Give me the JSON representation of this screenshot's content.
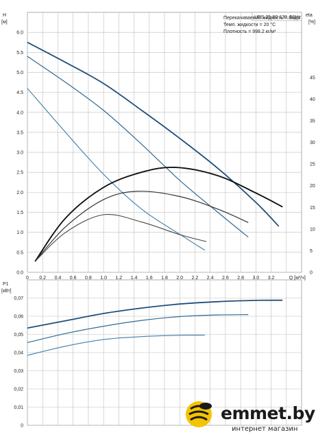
{
  "chart_data": [
    {
      "type": "line",
      "title": "UPS 25-60 130, 50Hz",
      "info_lines": [
        "Перекачиваемая жидкость = Вода",
        "Темп. жидкости = 20 °C",
        "Плотность = 998.2 кг/м³"
      ],
      "ylabel": "H",
      "yunit": "[м]",
      "y2label": "eta",
      "y2unit": "[%]",
      "xlabel": "Q [м³/ч]",
      "xlim": [
        0,
        3.6
      ],
      "ylim": [
        0,
        6.5
      ],
      "y2lim": [
        0,
        60
      ],
      "x_ticks": [
        "0",
        "0.2",
        "0.4",
        "0.6",
        "0.8",
        "1.0",
        "1.2",
        "1.4",
        "1.6",
        "1.8",
        "2.0",
        "2.2",
        "2.4",
        "2.6",
        "2.8",
        "3.0",
        "3.2",
        "Q [м³/ч]"
      ],
      "y_ticks": [
        "0.0",
        "0.5",
        "1.0",
        "1.5",
        "2.0",
        "2.5",
        "3.0",
        "3.5",
        "4.0",
        "4.5",
        "5.0",
        "5.5",
        "6.0"
      ],
      "y2_ticks": [
        "0",
        "5",
        "10",
        "15",
        "20",
        "25",
        "30",
        "35",
        "40",
        "45"
      ],
      "grid": true,
      "series": [
        {
          "kind": "head",
          "color": "#1f4e79",
          "width": 1.8,
          "x": [
            0,
            0.5,
            1.0,
            1.5,
            2.0,
            2.5,
            3.0,
            3.3
          ],
          "y": [
            5.75,
            5.25,
            4.72,
            4.05,
            3.35,
            2.6,
            1.75,
            1.15
          ]
        },
        {
          "kind": "head",
          "color": "#2f6a91",
          "width": 1.2,
          "x": [
            0,
            0.5,
            1.0,
            1.5,
            2.0,
            2.5,
            2.9
          ],
          "y": [
            5.4,
            4.75,
            4.05,
            3.2,
            2.3,
            1.5,
            0.88
          ]
        },
        {
          "kind": "head",
          "color": "#3f7ca6",
          "width": 1.1,
          "x": [
            0,
            0.5,
            1.0,
            1.5,
            2.0,
            2.33
          ],
          "y": [
            4.6,
            3.5,
            2.45,
            1.58,
            0.95,
            0.55
          ]
        },
        {
          "kind": "eta",
          "color": "#111111",
          "width": 1.9,
          "x": [
            0.1,
            0.5,
            1.0,
            1.5,
            1.95,
            2.5,
            3.0,
            3.35
          ],
          "y": [
            2.5,
            12.5,
            19.6,
            23.1,
            24.2,
            22.3,
            18.3,
            15.1
          ]
        },
        {
          "kind": "eta",
          "color": "#333333",
          "width": 1.2,
          "x": [
            0.1,
            0.5,
            1.0,
            1.45,
            2.0,
            2.5,
            2.9
          ],
          "y": [
            2.5,
            10.5,
            16.8,
            18.7,
            17.5,
            14.6,
            11.5
          ]
        },
        {
          "kind": "eta",
          "color": "#444444",
          "width": 1.1,
          "x": [
            0.1,
            0.5,
            1.0,
            1.5,
            2.0,
            2.35
          ],
          "y": [
            2.5,
            9.2,
            13.3,
            11.6,
            8.7,
            7.1
          ]
        }
      ]
    },
    {
      "type": "line",
      "ylabel": "P1",
      "yunit": "[кВт]",
      "xlim": [
        0,
        3.6
      ],
      "ylim": [
        0,
        0.08
      ],
      "y_ticks": [
        "0",
        "0,01",
        "0,02",
        "0,03",
        "0,04",
        "0,05",
        "0,06",
        "0,07"
      ],
      "grid": true,
      "series": [
        {
          "color": "#1f4e79",
          "width": 1.8,
          "x": [
            0,
            0.5,
            1.0,
            1.5,
            2.0,
            2.5,
            3.0,
            3.35
          ],
          "y": [
            0.0535,
            0.0575,
            0.0615,
            0.0645,
            0.0667,
            0.068,
            0.0687,
            0.0688
          ]
        },
        {
          "color": "#2f6a91",
          "width": 1.2,
          "x": [
            0,
            0.5,
            1.0,
            1.5,
            2.0,
            2.5,
            2.9
          ],
          "y": [
            0.0455,
            0.0505,
            0.0545,
            0.0577,
            0.0598,
            0.0607,
            0.0609
          ]
        },
        {
          "color": "#3f7ca6",
          "width": 1.1,
          "x": [
            0,
            0.5,
            1.0,
            1.5,
            2.0,
            2.33
          ],
          "y": [
            0.0385,
            0.0435,
            0.0472,
            0.0488,
            0.0495,
            0.0496
          ]
        }
      ]
    }
  ],
  "logo": {
    "name": "emmet.by",
    "tagline": "интернет магазин",
    "accent": "#f3c300"
  }
}
